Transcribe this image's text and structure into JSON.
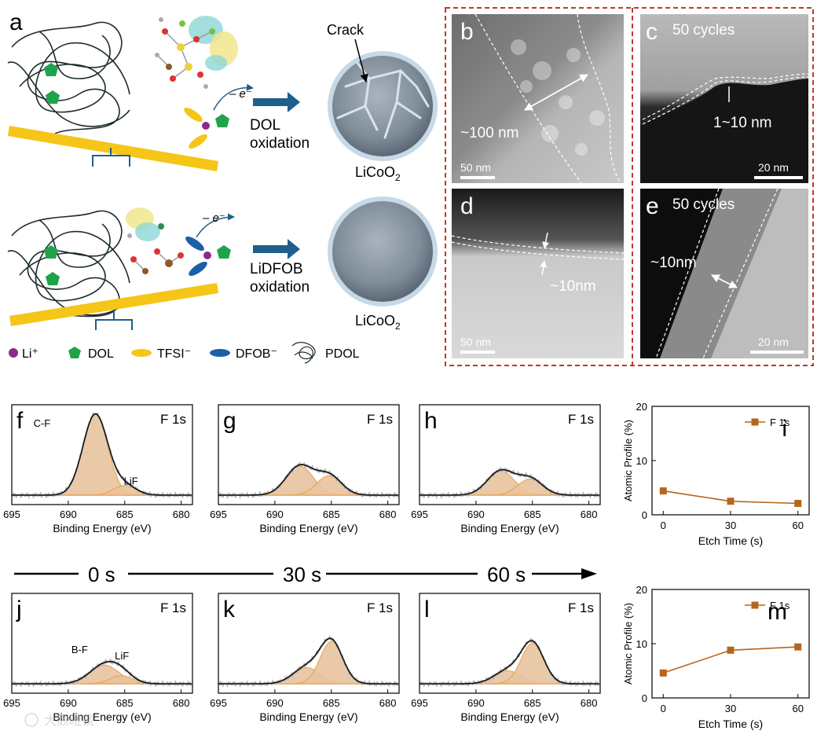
{
  "panel_labels": {
    "a": "a",
    "b": "b",
    "c": "c",
    "d": "d",
    "e": "e",
    "f": "f",
    "g": "g",
    "h": "h",
    "i": "i",
    "j": "j",
    "k": "k",
    "l": "l",
    "m": "m"
  },
  "schematic": {
    "crack_label": "Crack",
    "electron_top": "– e⁻",
    "electron_bottom": "– e⁻",
    "reaction_top_line1": "DOL",
    "reaction_top_line2": "oxidation",
    "reaction_bottom_line1": "LiDFOB",
    "reaction_bottom_line2": "oxidation",
    "particle_label_top": "LiCoO",
    "particle_label_bottom": "LiCoO",
    "particle_subscript": "2",
    "legend": {
      "li": "Li⁺",
      "dol": "DOL",
      "tfsi": "TFSI⁻",
      "dfob": "DFOB⁻",
      "pdol": "PDOL"
    },
    "colors": {
      "seesaw": "#f5c518",
      "arrow": "#1f5f8b",
      "li": "#8e2a8e",
      "dol": "#1fa34a",
      "tfsi": "#f5c518",
      "dfob": "#1a5fa8",
      "particle": "#7f8c99"
    }
  },
  "tem": {
    "b": {
      "thickness": "~100 nm",
      "scalebar": "50 nm"
    },
    "c": {
      "cycles": "50 cycles",
      "thickness": "1~10 nm",
      "scalebar": "20 nm"
    },
    "d": {
      "thickness": "~10nm",
      "scalebar": "50 nm"
    },
    "e": {
      "cycles": "50 cycles",
      "thickness": "~10nm",
      "scalebar": "20 nm"
    }
  },
  "xps": {
    "core_level": "F 1s",
    "xlabel": "Binding Energy (eV)",
    "xticks": [
      "695",
      "690",
      "685",
      "680"
    ],
    "peak_labels": {
      "cf": "C-F",
      "lif": "LiF",
      "bf": "B-F"
    },
    "colors": {
      "fill": "#e8c4a0",
      "component": "#e8a85a",
      "envelope": "#111111",
      "raw": "#b0b0b0"
    }
  },
  "timeline": {
    "t0": "0 s",
    "t30": "30 s",
    "t60": "60 s"
  },
  "watermark": "大数瞪镜",
  "chart_data": [
    {
      "type": "line",
      "panel": "i",
      "x": [
        0,
        30,
        60
      ],
      "series": [
        {
          "name": "F 1s",
          "values": [
            4.4,
            2.5,
            2.1
          ]
        }
      ],
      "xlabel": "Etch Time (s)",
      "ylabel": "Atomic Profile (%)",
      "xticks": [
        "0",
        "30",
        "60"
      ],
      "yticks": [
        "0",
        "10",
        "20"
      ],
      "ylim": [
        0,
        20
      ],
      "legend": "top-right",
      "color": "#b5651d"
    },
    {
      "type": "line",
      "panel": "m",
      "x": [
        0,
        30,
        60
      ],
      "series": [
        {
          "name": "F 1s",
          "values": [
            4.6,
            8.8,
            9.4
          ]
        }
      ],
      "xlabel": "Etch Time (s)",
      "ylabel": "Atomic Profile (%)",
      "xticks": [
        "0",
        "30",
        "60"
      ],
      "yticks": [
        "0",
        "10",
        "20"
      ],
      "ylim": [
        0,
        20
      ],
      "legend": "top-right",
      "color": "#b5651d"
    }
  ]
}
